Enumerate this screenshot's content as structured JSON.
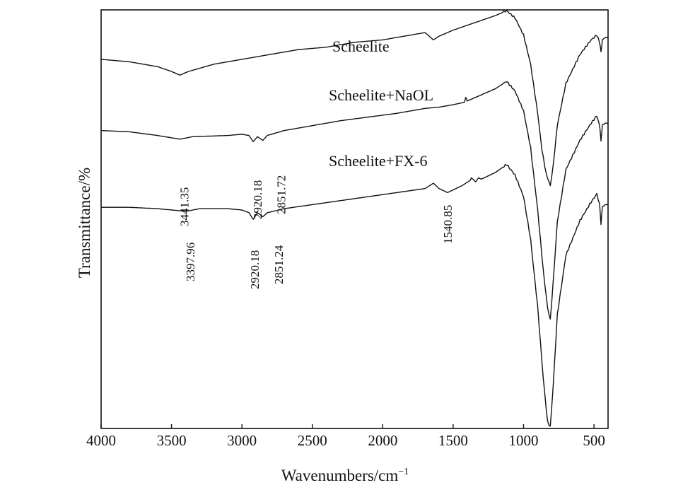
{
  "chart_data": {
    "type": "line",
    "title": "",
    "xlabel": "Wavenumbers/cm",
    "xlabel_superscript": "−1",
    "ylabel": "Transmittance/%",
    "xlim": [
      4000,
      400
    ],
    "x_reversed": true,
    "grid": false,
    "y_ticks_shown": false,
    "x_ticks": [
      4000,
      3500,
      3000,
      2500,
      2000,
      1500,
      1000,
      500
    ],
    "x_tick_labels": [
      "4000",
      "3500",
      "3000",
      "2500",
      "2000",
      "1500",
      "1000",
      "500"
    ],
    "series": [
      {
        "name": "Scheelite",
        "offset_rank": 0,
        "points": [
          [
            4000,
            0.82
          ],
          [
            3800,
            0.81
          ],
          [
            3600,
            0.79
          ],
          [
            3500,
            0.77
          ],
          [
            3441,
            0.755
          ],
          [
            3380,
            0.77
          ],
          [
            3200,
            0.8
          ],
          [
            3000,
            0.82
          ],
          [
            2800,
            0.84
          ],
          [
            2600,
            0.86
          ],
          [
            2400,
            0.87
          ],
          [
            2200,
            0.89
          ],
          [
            2000,
            0.9
          ],
          [
            1800,
            0.92
          ],
          [
            1700,
            0.93
          ],
          [
            1640,
            0.9
          ],
          [
            1600,
            0.915
          ],
          [
            1500,
            0.94
          ],
          [
            1400,
            0.96
          ],
          [
            1300,
            0.98
          ],
          [
            1200,
            1.0
          ],
          [
            1120,
            1.02
          ],
          [
            1060,
            0.99
          ],
          [
            1000,
            0.92
          ],
          [
            950,
            0.8
          ],
          [
            900,
            0.6
          ],
          [
            870,
            0.45
          ],
          [
            840,
            0.35
          ],
          [
            810,
            0.3
          ],
          [
            790,
            0.38
          ],
          [
            760,
            0.55
          ],
          [
            700,
            0.72
          ],
          [
            600,
            0.84
          ],
          [
            520,
            0.9
          ],
          [
            480,
            0.92
          ],
          [
            460,
            0.89
          ],
          [
            450,
            0.85
          ],
          [
            440,
            0.9
          ],
          [
            420,
            0.91
          ],
          [
            400,
            0.91
          ]
        ]
      },
      {
        "name": "Scheelite+NaOL",
        "offset_rank": 1,
        "points": [
          [
            4000,
            0.82
          ],
          [
            3800,
            0.815
          ],
          [
            3600,
            0.8
          ],
          [
            3441,
            0.785
          ],
          [
            3350,
            0.795
          ],
          [
            3100,
            0.8
          ],
          [
            3000,
            0.805
          ],
          [
            2950,
            0.8
          ],
          [
            2920,
            0.775
          ],
          [
            2890,
            0.795
          ],
          [
            2851,
            0.78
          ],
          [
            2820,
            0.8
          ],
          [
            2700,
            0.82
          ],
          [
            2500,
            0.84
          ],
          [
            2300,
            0.86
          ],
          [
            2100,
            0.875
          ],
          [
            1900,
            0.89
          ],
          [
            1700,
            0.91
          ],
          [
            1600,
            0.915
          ],
          [
            1500,
            0.925
          ],
          [
            1420,
            0.935
          ],
          [
            1410,
            0.955
          ],
          [
            1400,
            0.94
          ],
          [
            1300,
            0.965
          ],
          [
            1200,
            0.99
          ],
          [
            1120,
            1.02
          ],
          [
            1060,
            0.98
          ],
          [
            1000,
            0.9
          ],
          [
            950,
            0.75
          ],
          [
            900,
            0.5
          ],
          [
            860,
            0.25
          ],
          [
            830,
            0.1
          ],
          [
            810,
            0.05
          ],
          [
            790,
            0.2
          ],
          [
            760,
            0.45
          ],
          [
            700,
            0.66
          ],
          [
            600,
            0.78
          ],
          [
            520,
            0.85
          ],
          [
            480,
            0.88
          ],
          [
            460,
            0.84
          ],
          [
            450,
            0.78
          ],
          [
            440,
            0.84
          ],
          [
            420,
            0.85
          ],
          [
            400,
            0.85
          ]
        ]
      },
      {
        "name": "Scheelite+FX-6",
        "offset_rank": 2,
        "points": [
          [
            4000,
            0.82
          ],
          [
            3800,
            0.82
          ],
          [
            3600,
            0.815
          ],
          [
            3397,
            0.805
          ],
          [
            3300,
            0.815
          ],
          [
            3100,
            0.815
          ],
          [
            3000,
            0.81
          ],
          [
            2950,
            0.8
          ],
          [
            2920,
            0.775
          ],
          [
            2890,
            0.8
          ],
          [
            2851,
            0.785
          ],
          [
            2820,
            0.8
          ],
          [
            2700,
            0.815
          ],
          [
            2500,
            0.83
          ],
          [
            2300,
            0.845
          ],
          [
            2100,
            0.86
          ],
          [
            1900,
            0.875
          ],
          [
            1700,
            0.89
          ],
          [
            1640,
            0.91
          ],
          [
            1600,
            0.89
          ],
          [
            1540,
            0.875
          ],
          [
            1500,
            0.885
          ],
          [
            1440,
            0.9
          ],
          [
            1380,
            0.92
          ],
          [
            1370,
            0.93
          ],
          [
            1340,
            0.915
          ],
          [
            1320,
            0.93
          ],
          [
            1300,
            0.925
          ],
          [
            1200,
            0.95
          ],
          [
            1120,
            0.98
          ],
          [
            1060,
            0.94
          ],
          [
            1000,
            0.86
          ],
          [
            950,
            0.7
          ],
          [
            900,
            0.45
          ],
          [
            860,
            0.18
          ],
          [
            830,
            0.02
          ],
          [
            810,
            0.0
          ],
          [
            790,
            0.15
          ],
          [
            760,
            0.42
          ],
          [
            700,
            0.64
          ],
          [
            600,
            0.77
          ],
          [
            520,
            0.84
          ],
          [
            480,
            0.87
          ],
          [
            460,
            0.83
          ],
          [
            450,
            0.76
          ],
          [
            440,
            0.82
          ],
          [
            420,
            0.83
          ],
          [
            400,
            0.83
          ]
        ]
      }
    ],
    "annotations": [
      {
        "text": "3441.35",
        "x": 3441.35,
        "series": "Scheelite+NaOL"
      },
      {
        "text": "2920.18",
        "x": 2920.18,
        "series": "Scheelite+NaOL"
      },
      {
        "text": "2851.72",
        "x": 2851.72,
        "series": "Scheelite+NaOL"
      },
      {
        "text": "1540.85",
        "x": 1540.85,
        "series": "Scheelite+FX-6"
      },
      {
        "text": "3397.96",
        "x": 3397.96,
        "series": "Scheelite+FX-6"
      },
      {
        "text": "2920.18",
        "x": 2920.18,
        "series": "Scheelite+FX-6"
      },
      {
        "text": "2851.24",
        "x": 2851.24,
        "series": "Scheelite+FX-6"
      }
    ]
  }
}
